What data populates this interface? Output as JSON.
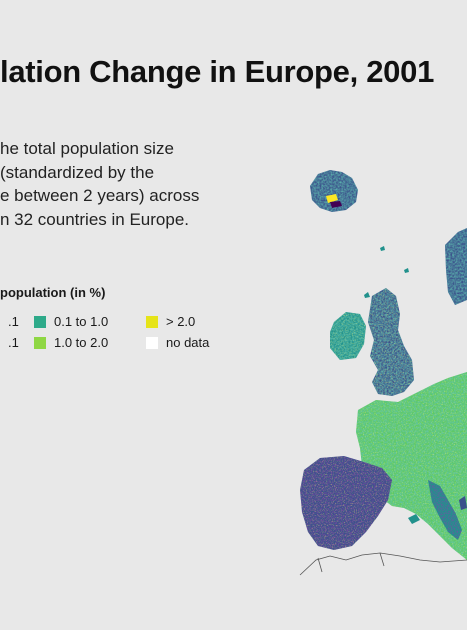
{
  "title": "lation Change in Europe, 2001",
  "subtitle": {
    "lines": [
      "he total population size",
      " (standardized by the",
      "e between 2 years) across",
      "n 32 countries in Europe."
    ]
  },
  "legend": {
    "title": "population (in %)",
    "items": [
      {
        "label": ".1",
        "color": "#3b528b"
      },
      {
        "label": "0.1 to 1.0",
        "color": "#2eaa8a"
      },
      {
        "label": "> 2.0",
        "color": "#e6e419"
      },
      {
        "label": ".1",
        "color": "#472c7a"
      },
      {
        "label": "1.0 to 2.0",
        "color": "#8fd744"
      },
      {
        "label": "no data",
        "color": "#ffffff"
      }
    ]
  },
  "colors": {
    "background": "#e8e8e8",
    "dark": "#440154",
    "blue": "#3b528b",
    "teal": "#21918c",
    "green": "#5ec962",
    "yellow": "#fde725",
    "border": "#555555"
  }
}
